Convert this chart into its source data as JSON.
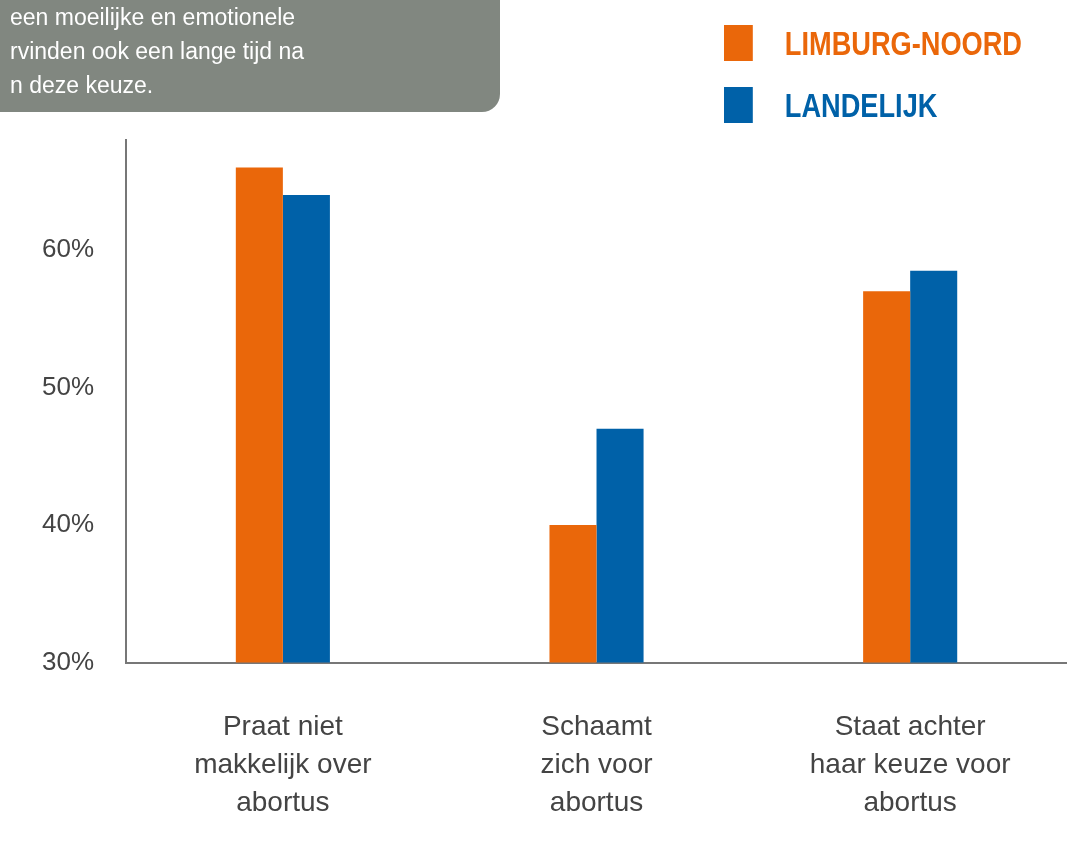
{
  "chart_data": {
    "type": "bar",
    "categories": [
      "Praat niet\nmakkelijk over\nabortus",
      "Schaamt\nzich voor\nabortus",
      "Staat achter\nhaar keuze voor\nabortus"
    ],
    "series": [
      {
        "name": "LIMBURG-NOORD",
        "color": "#ea670a",
        "values": [
          66,
          40,
          57
        ]
      },
      {
        "name": "LANDELIJK",
        "color": "#0061a8",
        "values": [
          64,
          47,
          58.5
        ]
      }
    ],
    "ylim": [
      30,
      68
    ],
    "yticks": [
      {
        "value": 30,
        "label": "30%"
      },
      {
        "value": 40,
        "label": "40%"
      },
      {
        "value": 50,
        "label": "50%"
      },
      {
        "value": 60,
        "label": "60%"
      }
    ],
    "legend": "top right",
    "annotations": [
      "een moeilijke en emotionele\nrvinden ook een lange tijd na\nn deze keuze."
    ]
  }
}
